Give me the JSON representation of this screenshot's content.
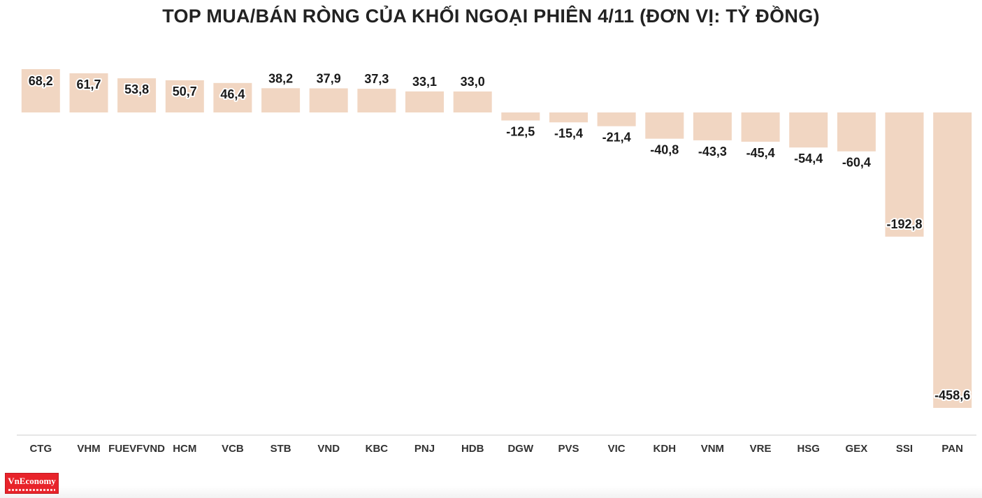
{
  "title": "TOP MUA/BÁN RÒNG CỦA KHỐI NGOẠI PHIÊN 4/11 (ĐƠN VỊ: TỶ ĐỒNG)",
  "logo": {
    "text": "VnEconomy"
  },
  "colors": {
    "bar": "#f1d6c2",
    "axis": "#cccccc",
    "text": "#222222"
  },
  "chart_data": {
    "type": "bar",
    "title": "TOP MUA/BÁN RÒNG CỦA KHỐI NGOẠI PHIÊN 4/11 (ĐƠN VỊ: TỶ ĐỒNG)",
    "xlabel": "",
    "ylabel": "",
    "categories": [
      "CTG",
      "VHM",
      "FUEVFVND",
      "HCM",
      "VCB",
      "STB",
      "VND",
      "KBC",
      "PNJ",
      "HDB",
      "DGW",
      "PVS",
      "VIC",
      "KDH",
      "VNM",
      "VRE",
      "HSG",
      "GEX",
      "SSI",
      "PAN"
    ],
    "values": [
      68.2,
      61.7,
      53.8,
      50.7,
      46.4,
      38.2,
      37.9,
      37.3,
      33.1,
      33.0,
      -12.5,
      -15.4,
      -21.4,
      -40.8,
      -43.3,
      -45.4,
      -54.4,
      -60.4,
      -192.8,
      -458.6
    ],
    "labels": [
      "68,2",
      "61,7",
      "53,8",
      "50,7",
      "46,4",
      "38,2",
      "37,9",
      "37,3",
      "33,1",
      "33,0",
      "-12,5",
      "-15,4",
      "-21,4",
      "-40,8",
      "-43,3",
      "-45,4",
      "-54,4",
      "-60,4",
      "-192,8",
      "-458,6"
    ],
    "ylim": [
      -458.6,
      68.2
    ],
    "grid": false,
    "legend": "none"
  }
}
